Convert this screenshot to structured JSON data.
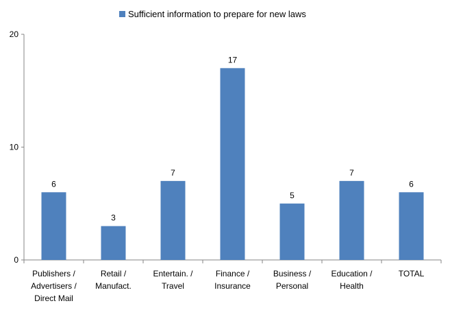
{
  "chart_data": {
    "type": "bar",
    "title": "",
    "xlabel": "",
    "ylabel": "",
    "ylim": [
      0,
      20
    ],
    "yticks": [
      0,
      10,
      20
    ],
    "grid": false,
    "legend_position": "top",
    "categories": [
      [
        "Publishers /",
        "Advertisers /",
        "Direct Mail"
      ],
      [
        "Retail /",
        "Manufact."
      ],
      [
        "Entertain. /",
        "Travel"
      ],
      [
        "Finance /",
        "Insurance"
      ],
      [
        "Business /",
        "Personal"
      ],
      [
        "Education /",
        "Health"
      ],
      [
        "TOTAL"
      ]
    ],
    "series": [
      {
        "name": "Sufficient information to prepare for new laws",
        "color": "#4f81bd",
        "values": [
          6,
          3,
          7,
          17,
          5,
          7,
          6
        ]
      }
    ]
  }
}
